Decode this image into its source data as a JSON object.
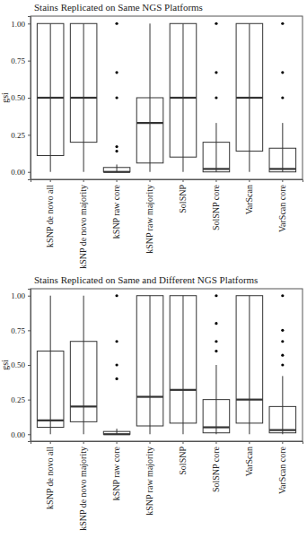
{
  "chart_data": [
    {
      "type": "box",
      "title": "Stains Replicated on Same NGS Platforms",
      "y_label": "gsi",
      "categories": [
        "kSNP de novo all",
        "kSNP de novo majority",
        "kSNP raw core",
        "kSNP raw majority",
        "SolSNP",
        "SolSNP core",
        "VarScan",
        "VarScan core"
      ],
      "boxes": [
        {
          "min": 0,
          "q1": 0.11,
          "median": 0.5,
          "q3": 1.0,
          "max": 1.0,
          "outliers": []
        },
        {
          "min": 0,
          "q1": 0.2,
          "median": 0.5,
          "q3": 1.0,
          "max": 1.0,
          "outliers": []
        },
        {
          "min": 0,
          "q1": 0,
          "median": 0,
          "q3": 0.03,
          "max": 0.05,
          "outliers": [
            1.0,
            0.67,
            0.5,
            0.17,
            0.14
          ]
        },
        {
          "min": 0,
          "q1": 0.06,
          "median": 0.33,
          "q3": 0.5,
          "max": 1.0,
          "outliers": []
        },
        {
          "min": 0,
          "q1": 0.1,
          "median": 0.5,
          "q3": 1.0,
          "max": 1.0,
          "outliers": []
        },
        {
          "min": 0,
          "q1": 0,
          "median": 0.02,
          "q3": 0.2,
          "max": 0.33,
          "outliers": [
            1.0,
            0.67,
            0.5
          ]
        },
        {
          "min": 0,
          "q1": 0.14,
          "median": 0.5,
          "q3": 1.0,
          "max": 1.0,
          "outliers": []
        },
        {
          "min": 0,
          "q1": 0,
          "median": 0.02,
          "q3": 0.16,
          "max": 0.33,
          "outliers": [
            1.0,
            0.67,
            0.5
          ]
        }
      ],
      "color": "#333333",
      "ylim": [
        -0.05,
        1.05
      ],
      "yticks": [
        {
          "value": 0,
          "label": "0.00"
        },
        {
          "value": 0.25,
          "label": "0.25"
        },
        {
          "value": 0.5,
          "label": "0.50"
        },
        {
          "value": 0.75,
          "label": "0.75"
        },
        {
          "value": 1,
          "label": "1.00"
        }
      ]
    },
    {
      "type": "box",
      "title": "Stains Replicated on Same and Different NGS Platforms",
      "y_label": "gsi",
      "categories": [
        "kSNP de novo all",
        "kSNP de novo majority",
        "kSNP raw core",
        "kSNP raw majority",
        "SolSNP",
        "SolSNP core",
        "VarScan",
        "VarScan core"
      ],
      "boxes": [
        {
          "min": 0,
          "q1": 0.05,
          "median": 0.1,
          "q3": 0.6,
          "max": 1.0,
          "outliers": []
        },
        {
          "min": 0,
          "q1": 0.09,
          "median": 0.2,
          "q3": 0.67,
          "max": 1.0,
          "outliers": []
        },
        {
          "min": 0,
          "q1": 0,
          "median": 0,
          "q3": 0.02,
          "max": 0.04,
          "outliers": [
            1.0,
            0.67,
            0.5,
            0.4
          ]
        },
        {
          "min": 0,
          "q1": 0.06,
          "median": 0.27,
          "q3": 1.0,
          "max": 1.0,
          "outliers": []
        },
        {
          "min": 0,
          "q1": 0.08,
          "median": 0.32,
          "q3": 1.0,
          "max": 1.0,
          "outliers": []
        },
        {
          "min": 0,
          "q1": 0.01,
          "median": 0.05,
          "q3": 0.25,
          "max": 0.5,
          "outliers": [
            1.0,
            0.8,
            0.67,
            0.6
          ]
        },
        {
          "min": 0,
          "q1": 0.08,
          "median": 0.25,
          "q3": 1.0,
          "max": 1.0,
          "outliers": []
        },
        {
          "min": 0,
          "q1": 0.01,
          "median": 0.03,
          "q3": 0.2,
          "max": 0.42,
          "outliers": [
            1.0,
            0.75,
            0.67,
            0.57,
            0.5
          ]
        }
      ],
      "color": "#333333",
      "ylim": [
        -0.05,
        1.05
      ],
      "yticks": [
        {
          "value": 0,
          "label": "0.00"
        },
        {
          "value": 0.25,
          "label": "0.25"
        },
        {
          "value": 0.5,
          "label": "0.50"
        },
        {
          "value": 0.75,
          "label": "0.75"
        },
        {
          "value": 1,
          "label": "1.00"
        }
      ]
    }
  ]
}
